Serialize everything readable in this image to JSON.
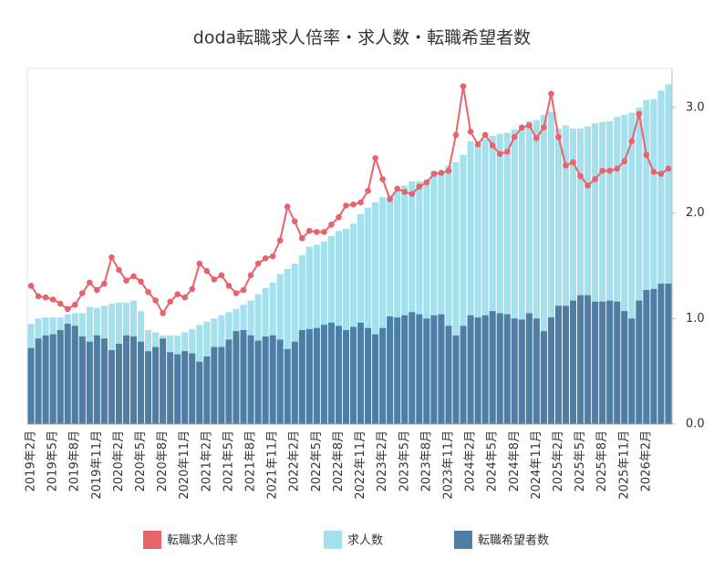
{
  "chart_data": {
    "type": "bar",
    "title": "doda転職求人倍率・求人数・転職希望者数",
    "categories": [
      "2019年2月",
      null,
      null,
      "2019年5月",
      null,
      null,
      "2019年8月",
      null,
      null,
      "2019年11月",
      null,
      null,
      "2020年2月",
      null,
      null,
      "2020年5月",
      null,
      null,
      "2020年8月",
      null,
      null,
      "2020年11月",
      null,
      null,
      "2021年2月",
      null,
      null,
      "2021年5月",
      null,
      null,
      "2021年8月",
      null,
      null,
      "2021年11月",
      null,
      null,
      "2022年2月",
      null,
      null,
      "2022年5月",
      null,
      null,
      "2022年8月",
      null,
      null,
      "2022年11月",
      null,
      null,
      "2023年2月",
      null,
      null,
      "2023年5月",
      null,
      null,
      "2023年8月",
      null,
      null,
      "2023年11月",
      null,
      null,
      "2024年2月",
      null,
      null,
      "2024年5月",
      null,
      null,
      "2024年8月",
      null,
      null,
      "2024年11月",
      null,
      null,
      "2025年2月",
      null,
      null,
      "2025年5月",
      null,
      null,
      "2025年8月",
      null,
      null,
      "2025年11月",
      null,
      null,
      "2026年2月",
      null,
      null,
      null
    ],
    "series": [
      {
        "name": "転職求人倍率",
        "type": "line",
        "color": "#e8636b",
        "values": [
          1.31,
          1.21,
          1.2,
          1.18,
          1.14,
          1.09,
          1.13,
          1.24,
          1.34,
          1.27,
          1.33,
          1.58,
          1.46,
          1.36,
          1.4,
          1.35,
          1.25,
          1.17,
          1.05,
          1.16,
          1.23,
          1.2,
          1.28,
          1.52,
          1.45,
          1.37,
          1.41,
          1.31,
          1.24,
          1.27,
          1.41,
          1.52,
          1.57,
          1.59,
          1.74,
          2.06,
          1.92,
          1.76,
          1.83,
          1.82,
          1.82,
          1.89,
          1.96,
          2.07,
          2.08,
          2.1,
          2.21,
          2.52,
          2.32,
          2.13,
          2.23,
          2.2,
          2.18,
          2.25,
          2.29,
          2.37,
          2.38,
          2.4,
          2.74,
          3.2,
          2.77,
          2.65,
          2.74,
          2.64,
          2.56,
          2.58,
          2.72,
          2.81,
          2.83,
          2.71,
          2.81,
          3.13,
          2.72,
          2.45,
          2.48,
          2.35,
          2.26,
          2.32,
          2.4,
          2.4,
          2.42,
          2.49,
          2.68,
          2.94,
          2.55,
          2.39,
          2.37,
          2.42
        ]
      },
      {
        "name": "求人数",
        "type": "bar",
        "color": "#a3e1ee",
        "values": [
          0.95,
          1.0,
          1.01,
          1.01,
          1.01,
          1.04,
          1.05,
          1.05,
          1.11,
          1.1,
          1.12,
          1.14,
          1.15,
          1.15,
          1.17,
          1.07,
          0.89,
          0.87,
          0.84,
          0.84,
          0.84,
          0.87,
          0.9,
          0.94,
          0.97,
          1.0,
          1.03,
          1.06,
          1.09,
          1.13,
          1.17,
          1.23,
          1.29,
          1.34,
          1.42,
          1.47,
          1.52,
          1.6,
          1.68,
          1.7,
          1.73,
          1.78,
          1.83,
          1.85,
          1.9,
          1.99,
          2.05,
          2.1,
          2.15,
          2.17,
          2.21,
          2.26,
          2.3,
          2.3,
          2.31,
          2.4,
          2.39,
          2.45,
          2.48,
          2.55,
          2.68,
          2.64,
          2.7,
          2.73,
          2.75,
          2.76,
          2.79,
          2.82,
          2.87,
          2.88,
          2.93,
          2.96,
          2.8,
          2.83,
          2.8,
          2.8,
          2.82,
          2.85,
          2.86,
          2.87,
          2.91,
          2.93,
          2.95,
          3.0,
          3.07,
          3.08,
          3.16,
          3.22
        ]
      },
      {
        "name": "転職希望者数",
        "type": "bar",
        "color": "#4e7ea6",
        "values": [
          0.72,
          0.81,
          0.84,
          0.85,
          0.89,
          0.95,
          0.93,
          0.83,
          0.78,
          0.84,
          0.81,
          0.7,
          0.76,
          0.84,
          0.83,
          0.78,
          0.69,
          0.73,
          0.81,
          0.68,
          0.66,
          0.69,
          0.67,
          0.59,
          0.64,
          0.73,
          0.73,
          0.8,
          0.88,
          0.89,
          0.84,
          0.79,
          0.83,
          0.84,
          0.8,
          0.71,
          0.78,
          0.89,
          0.9,
          0.91,
          0.94,
          0.96,
          0.93,
          0.89,
          0.92,
          0.96,
          0.91,
          0.85,
          0.91,
          1.02,
          1.01,
          1.03,
          1.06,
          1.04,
          1.0,
          1.03,
          1.04,
          0.93,
          0.84,
          0.93,
          1.03,
          1.01,
          1.03,
          1.07,
          1.05,
          1.04,
          1.0,
          0.99,
          1.05,
          1.0,
          0.88,
          1.01,
          1.12,
          1.12,
          1.17,
          1.22,
          1.22,
          1.16,
          1.16,
          1.17,
          1.16,
          1.07,
          1.0,
          1.17,
          1.27,
          1.28,
          1.33,
          1.33
        ]
      }
    ],
    "ylim": [
      0,
      3.37
    ],
    "yticks": [
      {
        "value": 0,
        "label": "0.0"
      },
      {
        "value": 1,
        "label": "1.0"
      },
      {
        "value": 2,
        "label": "2.0"
      },
      {
        "value": 3,
        "label": "3.0"
      }
    ],
    "legend": "bottom"
  }
}
